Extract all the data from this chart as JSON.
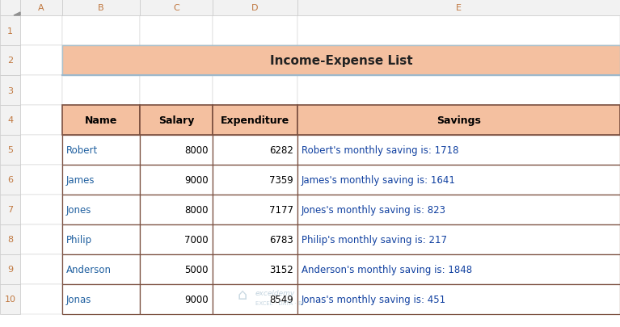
{
  "title": "Income-Expense List",
  "title_bg": "#F4C0A0",
  "title_border": "#A8C0CC",
  "header_bg": "#F4C0A0",
  "header_border": "#7B5040",
  "col_headers": [
    "Name",
    "Salary",
    "Expenditure",
    "Savings"
  ],
  "rows": [
    [
      "Robert",
      "8000",
      "6282",
      "Robert's monthly saving is: 1718"
    ],
    [
      "James",
      "9000",
      "7359",
      "James's monthly saving is: 1641"
    ],
    [
      "Jones",
      "8000",
      "7177",
      "Jones's monthly saving is: 823"
    ],
    [
      "Philip",
      "7000",
      "6783",
      "Philip's monthly saving is: 217"
    ],
    [
      "Anderson",
      "5000",
      "3152",
      "Anderson's monthly saving is: 1848"
    ],
    [
      "Jonas",
      "9000",
      "8549",
      "Jonas's monthly saving is: 451"
    ]
  ],
  "col_aligns": [
    "left",
    "right",
    "right",
    "left"
  ],
  "excel_col_letters": [
    "A",
    "B",
    "C",
    "D",
    "E"
  ],
  "excel_row_numbers": [
    "1",
    "2",
    "3",
    "4",
    "5",
    "6",
    "7",
    "8",
    "9",
    "10"
  ],
  "bg_color": "#FFFFFF",
  "cell_bg": "#FFFFFF",
  "excel_header_bg": "#F2F2F2",
  "excel_header_border": "#C8C8C8",
  "excel_rn_color": "#C07840",
  "body_text_color": "#000000",
  "header_text_color": "#000000",
  "watermark_color": "#A8C0D0",
  "title_blue_border": "#9DB8CC",
  "name_col_color": "#2060A0",
  "note_col_color": "#1040A0"
}
